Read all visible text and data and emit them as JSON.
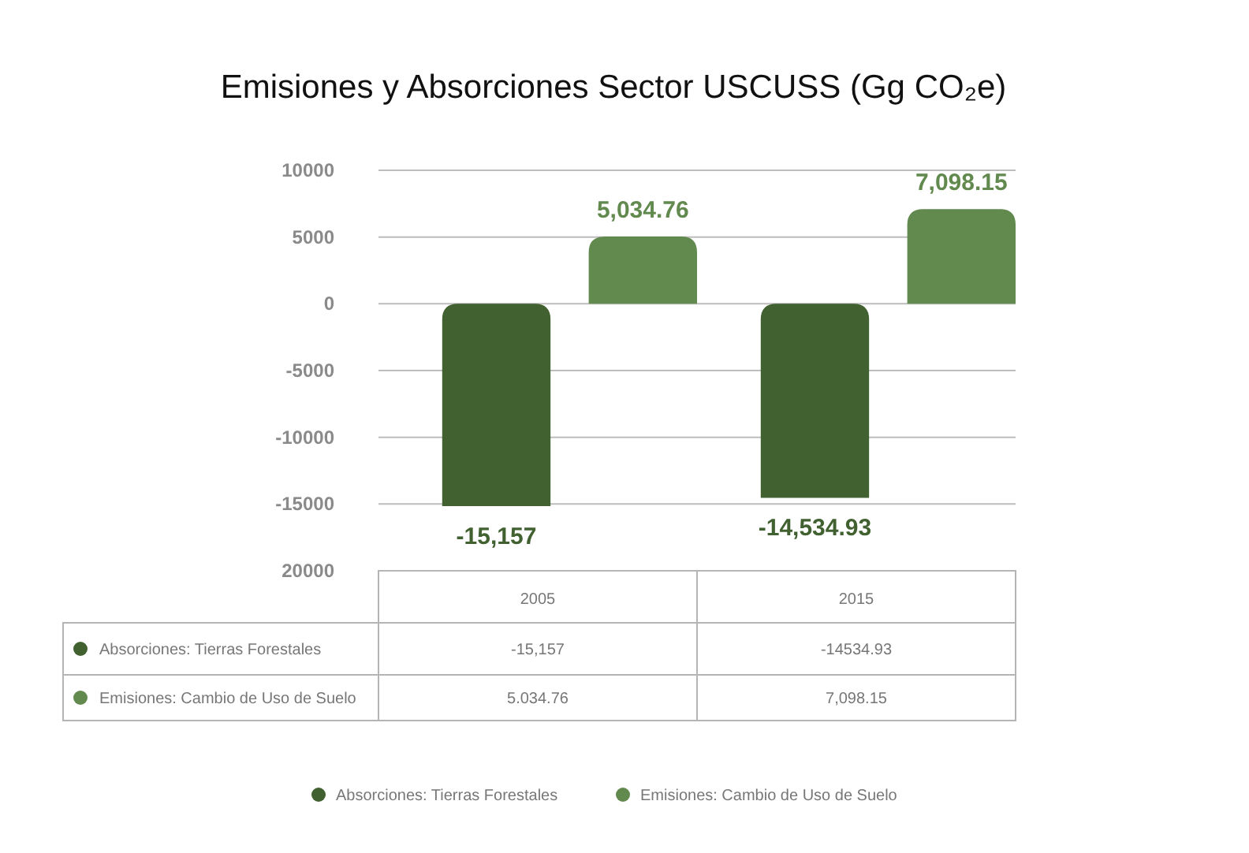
{
  "chart_data": {
    "type": "bar",
    "title": "Emisiones y Absorciones Sector USCUSS (Gg CO₂e)",
    "categories": [
      "2005",
      "2015"
    ],
    "series": [
      {
        "name": "Absorciones: Tierras Forestales",
        "color": "#426131",
        "values": [
          -15157,
          -14534.93
        ],
        "value_labels": [
          "-15,157",
          "-14,534.93"
        ]
      },
      {
        "name": "Emisiones: Cambio de Uso de Suelo",
        "color": "#628a4f",
        "values": [
          5034.76,
          7098.15
        ],
        "value_labels": [
          "5,034.76",
          "7,098.15"
        ]
      }
    ],
    "ylim": [
      -20000,
      10000
    ],
    "yticks": [
      {
        "value": -20000,
        "label": "20000"
      },
      -15000,
      -10000,
      -5000,
      0,
      5000,
      10000
    ],
    "grid": "y",
    "legend": "bottom",
    "annotations": [
      "-15,157",
      "-14534.93",
      "5.034.76",
      "7,098.15"
    ]
  }
}
